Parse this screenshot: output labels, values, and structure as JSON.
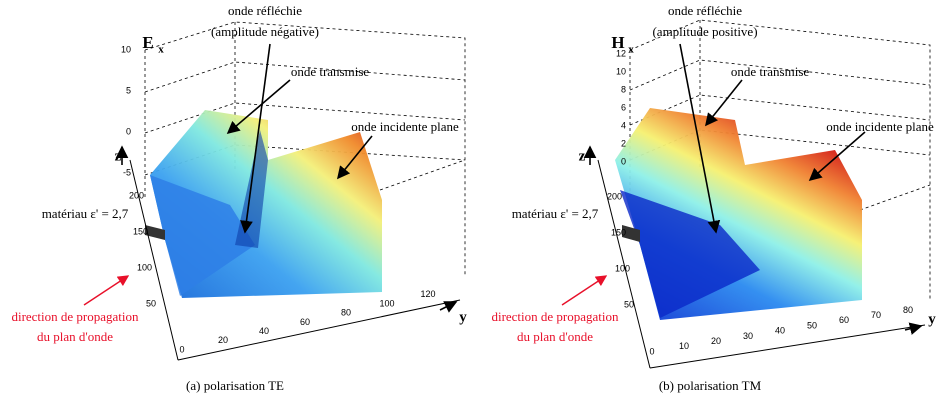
{
  "panels": [
    {
      "symbol": "E",
      "subscript": "x",
      "reflected": "onde réfléchie",
      "reflected_note": "(amplitude négative)",
      "transmitted": "onde transmise",
      "incident": "onde incidente plane",
      "z_label": "z",
      "y_label": "y",
      "material": "matériau ε' = 2,7",
      "propagation": [
        "direction de propagation",
        "du plan d'onde"
      ],
      "z_ticks": [
        "10",
        "5",
        "0",
        "-5"
      ],
      "depth_ticks": [
        "200",
        "150",
        "100",
        "50"
      ],
      "y_ticks": [
        "0",
        "20",
        "40",
        "60",
        "80",
        "100",
        "120"
      ],
      "caption": "(a) polarisation TE"
    },
    {
      "symbol": "H",
      "subscript": "x",
      "reflected": "onde réfléchie",
      "reflected_note": "(amplitude positive)",
      "transmitted": "onde transmise",
      "incident": "onde incidente plane",
      "z_label": "z",
      "y_label": "y",
      "material": "matériau ε' = 2,7",
      "propagation": [
        "direction de propagation",
        "du plan d'onde"
      ],
      "z_ticks": [
        "12",
        "10",
        "8",
        "6",
        "4",
        "2",
        "0"
      ],
      "depth_ticks": [
        "200",
        "150",
        "100",
        "50"
      ],
      "y_ticks": [
        "0",
        "10",
        "20",
        "30",
        "40",
        "50",
        "60",
        "70",
        "80"
      ],
      "caption": "(b) polarisation TM"
    }
  ]
}
